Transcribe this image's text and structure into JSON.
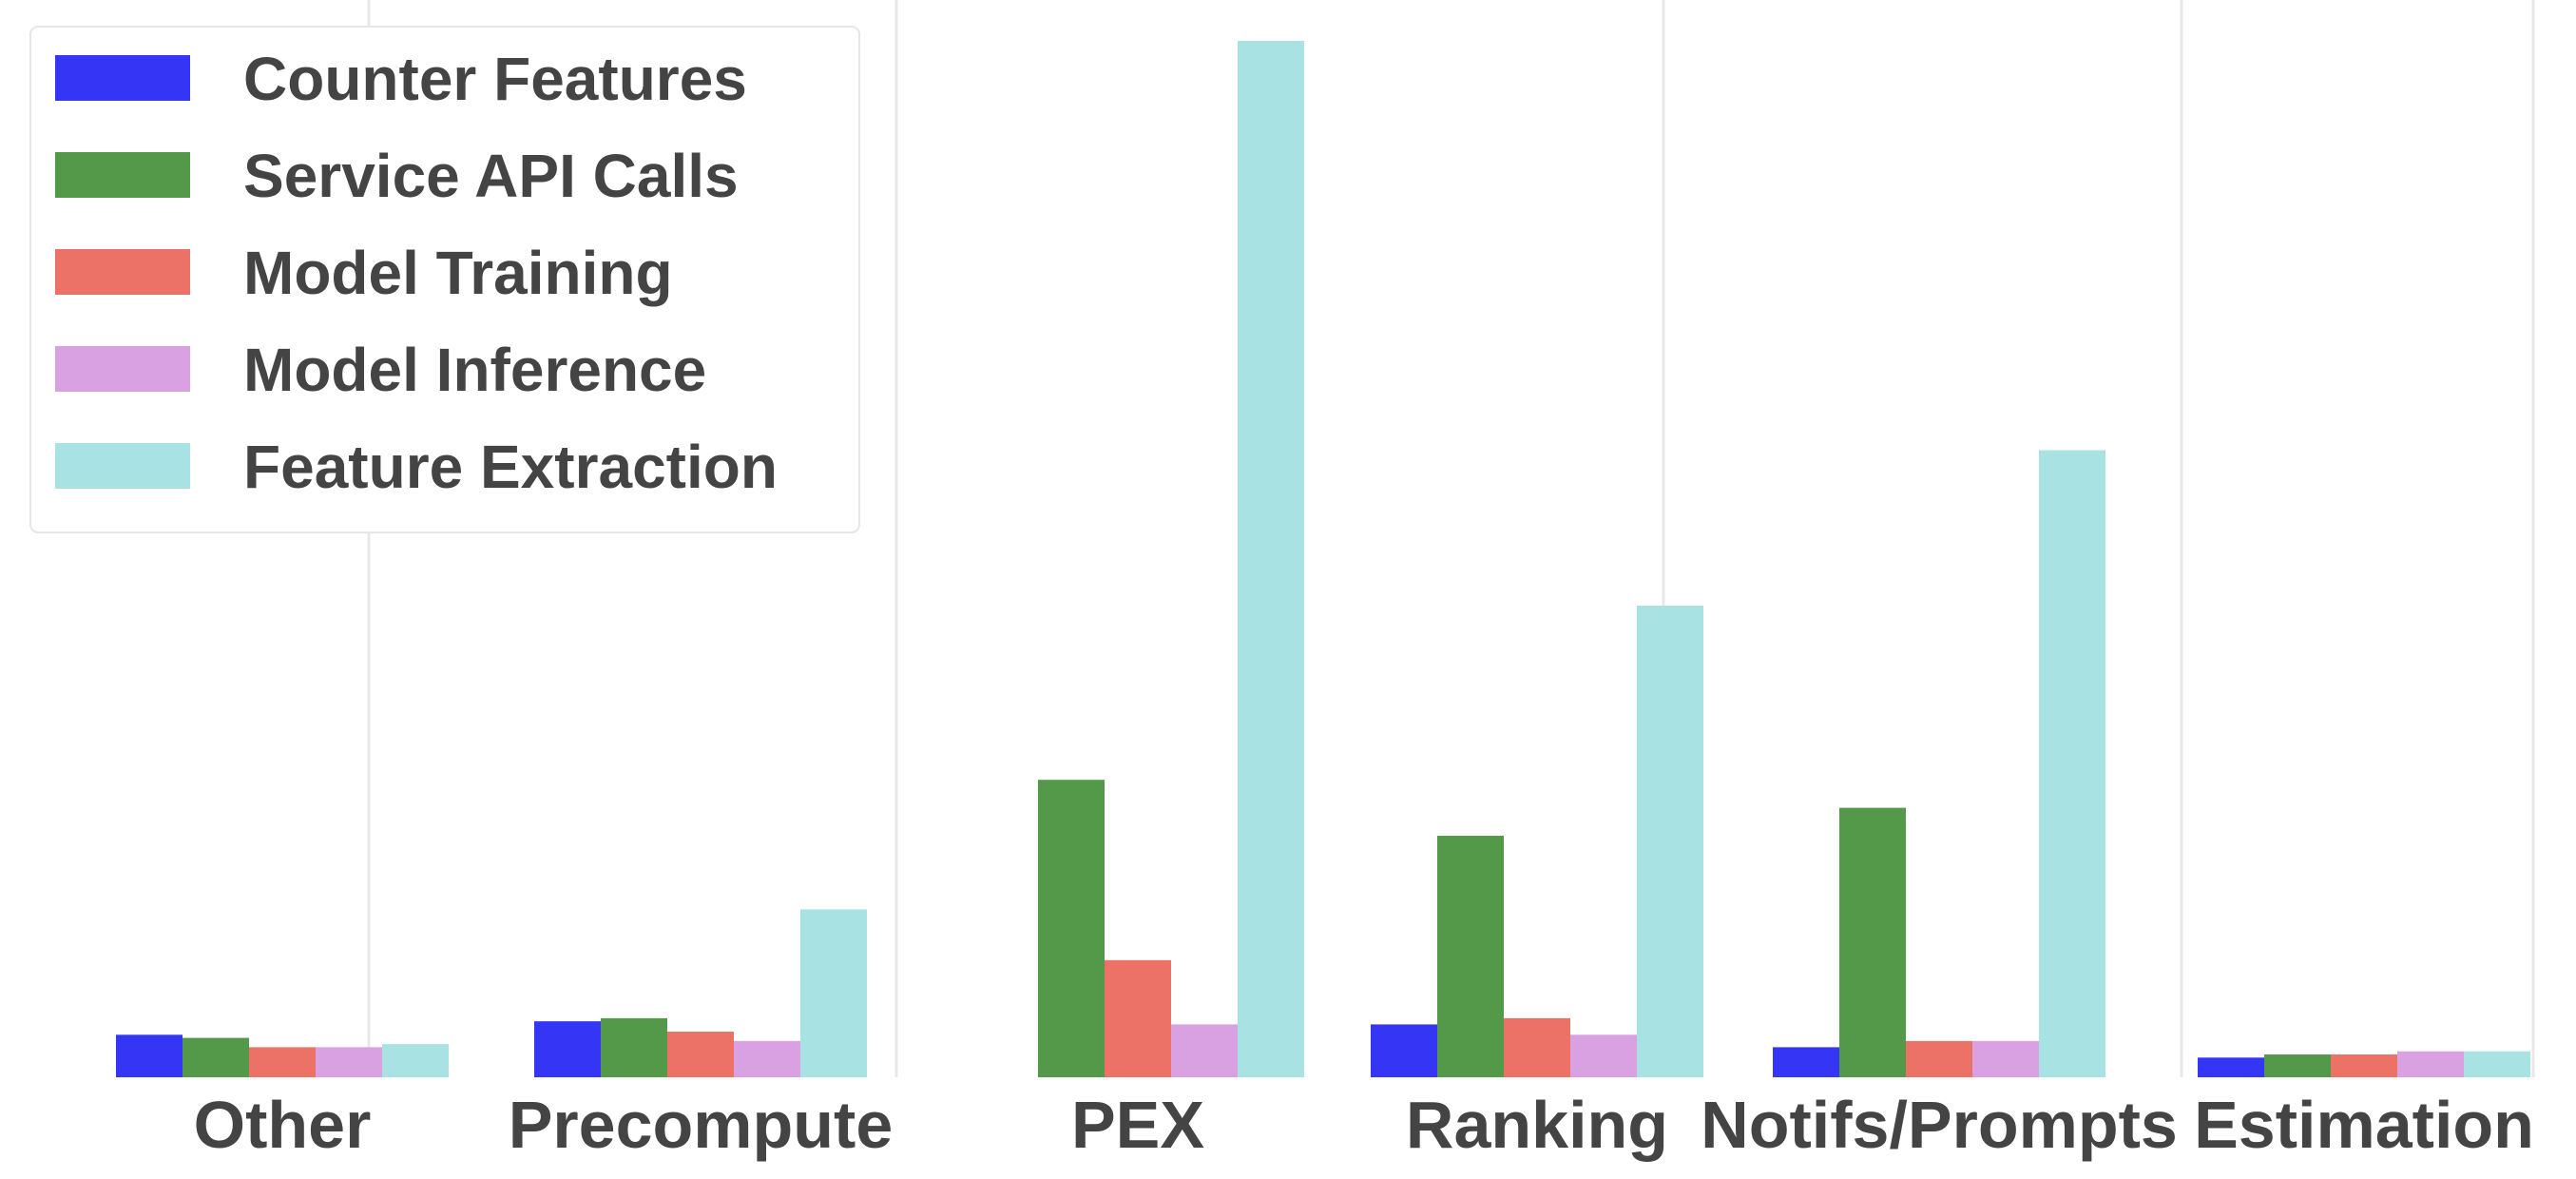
{
  "chart_data": {
    "type": "bar",
    "title": "",
    "xlabel": "",
    "ylabel": "",
    "ylim": [
      0,
      100
    ],
    "grid": "vertical-lines",
    "legend_position": "top-left",
    "categories": [
      "Other",
      "Precompute",
      "PEX",
      "Ranking",
      "Notifs/Prompts",
      "Estimation"
    ],
    "series": [
      {
        "name": "Counter Features",
        "color": "#3535f5",
        "values": [
          4.1,
          5.4,
          0,
          5.1,
          2.9,
          1.9
        ]
      },
      {
        "name": "Service API Calls",
        "color": "#54994a",
        "values": [
          3.8,
          5.7,
          28.7,
          23.3,
          26.0,
          2.2
        ]
      },
      {
        "name": "Model Training",
        "color": "#ec7267",
        "values": [
          2.9,
          4.4,
          11.3,
          5.7,
          3.5,
          2.2
        ]
      },
      {
        "name": "Model Inference",
        "color": "#d9a0e2",
        "values": [
          2.9,
          3.5,
          5.1,
          4.1,
          3.5,
          2.5
        ]
      },
      {
        "name": "Feature Extraction",
        "color": "#a9e2e3",
        "values": [
          3.2,
          16.2,
          100,
          45.5,
          60.5,
          2.5
        ]
      }
    ]
  }
}
